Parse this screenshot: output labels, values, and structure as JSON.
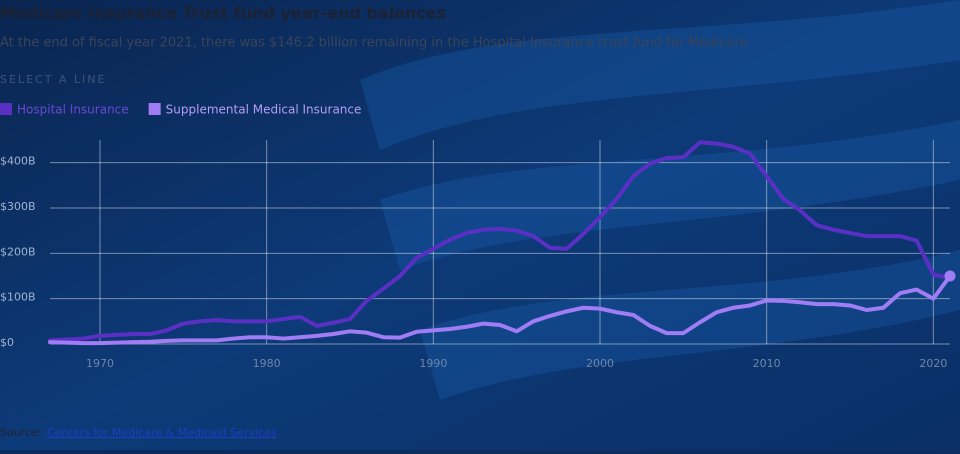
{
  "chart_data": {
    "type": "line",
    "title": "Medicare Insurance Trust fund year-end balances",
    "subtitle": "At the end of fiscal year 2021, there was $146.2 billion remaining in the Hospital Insurance trust fund for Medicare",
    "select_label": "SELECT A LINE",
    "source_label": "Source:",
    "source": "Centers for Medicare & Medicaid Services",
    "x": [
      1967,
      1968,
      1969,
      1970,
      1971,
      1972,
      1973,
      1974,
      1975,
      1976,
      1977,
      1978,
      1979,
      1980,
      1981,
      1982,
      1983,
      1984,
      1985,
      1986,
      1987,
      1988,
      1989,
      1990,
      1991,
      1992,
      1993,
      1994,
      1995,
      1996,
      1997,
      1998,
      1999,
      2000,
      2001,
      2002,
      2003,
      2004,
      2005,
      2006,
      2007,
      2008,
      2009,
      2010,
      2011,
      2012,
      2013,
      2014,
      2015,
      2016,
      2017,
      2018,
      2019,
      2020,
      2021
    ],
    "series": [
      {
        "name": "Hospital Insurance",
        "color": "#5a30c4",
        "values": [
          8,
          10,
          12,
          18,
          20,
          22,
          22,
          30,
          45,
          50,
          53,
          50,
          50,
          50,
          55,
          60,
          40,
          47,
          55,
          95,
          122,
          150,
          190,
          210,
          230,
          245,
          252,
          254,
          250,
          238,
          212,
          210,
          243,
          280,
          320,
          370,
          398,
          410,
          412,
          445,
          442,
          435,
          420,
          370,
          320,
          295,
          262,
          252,
          245,
          238,
          238,
          238,
          228,
          153,
          146.2
        ]
      },
      {
        "name": "Supplemental Medical Insurance",
        "color": "#a07cf5",
        "values": [
          4,
          3,
          2,
          2,
          3,
          4,
          5,
          7,
          8,
          8,
          8,
          12,
          15,
          15,
          12,
          15,
          18,
          22,
          28,
          25,
          15,
          14,
          27,
          30,
          33,
          38,
          45,
          42,
          28,
          50,
          62,
          72,
          80,
          78,
          70,
          64,
          40,
          24,
          24,
          48,
          70,
          80,
          85,
          96,
          95,
          92,
          88,
          88,
          85,
          75,
          80,
          112,
          120,
          100,
          150
        ]
      }
    ],
    "xlim": [
      1967,
      2021
    ],
    "xticks": [
      1970,
      1980,
      1990,
      2000,
      2010,
      2020
    ],
    "ylim": [
      0,
      450
    ],
    "yticks": [
      {
        "value": 0,
        "label": "$0"
      },
      {
        "value": 100,
        "label": "$100B"
      },
      {
        "value": 200,
        "label": "$200B"
      },
      {
        "value": 300,
        "label": "$300B"
      },
      {
        "value": 400,
        "label": "$400B"
      }
    ],
    "grid": true
  }
}
